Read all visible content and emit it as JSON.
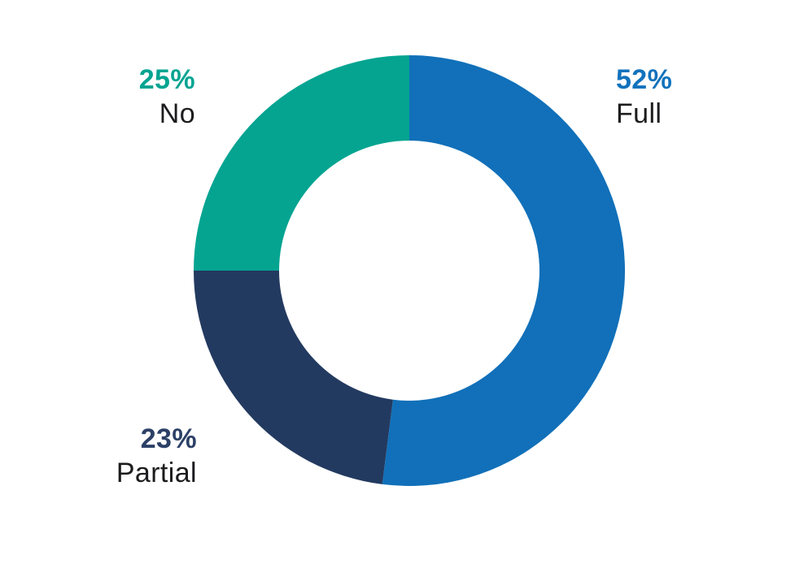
{
  "chart_data": {
    "type": "pie",
    "subtype": "donut",
    "title": "",
    "start_angle_deg": 0,
    "direction": "clockwise",
    "total": 100,
    "inner_radius_ratio": 0.6,
    "hole_color": "#ffffff",
    "background_color": "#ffffff",
    "category_label_color": "#1c1c1e",
    "legend": "none",
    "segments": [
      {
        "category": "Full",
        "value": 52,
        "display_value": "52%",
        "slice_color": "#1170b9",
        "value_label_color": "#1172bc",
        "label_position": "top-right"
      },
      {
        "category": "Partial",
        "value": 23,
        "display_value": "23%",
        "slice_color": "#233a60",
        "value_label_color": "#2c4067",
        "label_position": "bottom-left"
      },
      {
        "category": "No",
        "value": 25,
        "display_value": "25%",
        "slice_color": "#04a491",
        "value_label_color": "#04a491",
        "label_position": "top-left"
      }
    ]
  }
}
